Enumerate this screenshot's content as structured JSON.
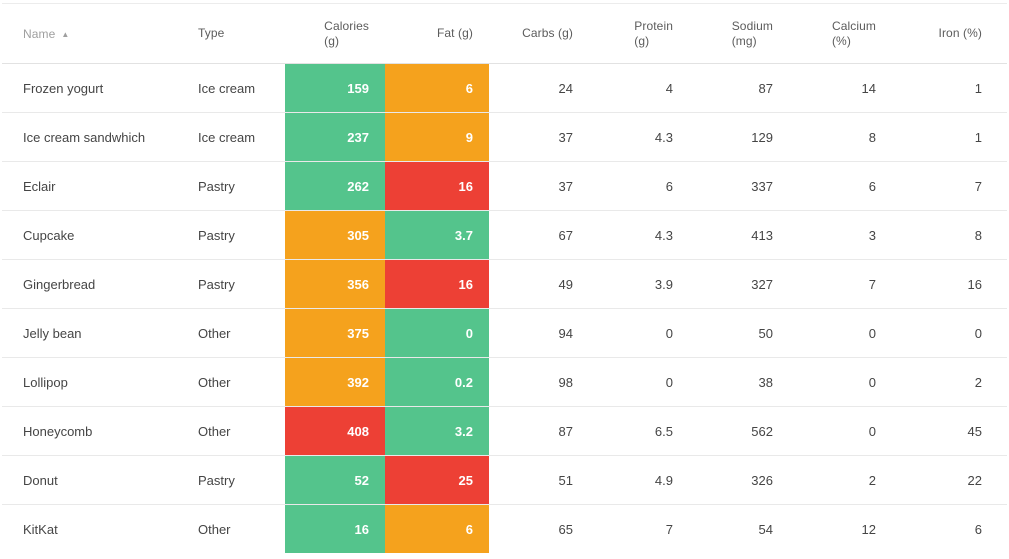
{
  "table": {
    "sort": {
      "column": "Name",
      "direction": "ascending",
      "icon": "▲"
    },
    "colors": {
      "green": "#54C48C",
      "orange": "#F5A21D",
      "red": "#ED4035",
      "divider": "#e9e9e9",
      "header_text": "#5c5c5c",
      "sorted_header_text": "#9f9f9f",
      "body_text": "#454545",
      "background": "#ffffff"
    },
    "columns": [
      {
        "key": "name",
        "label": "Name",
        "lines": [
          "Name"
        ],
        "align": "left",
        "sorted": true
      },
      {
        "key": "type",
        "label": "Type",
        "lines": [
          "Type"
        ],
        "align": "left"
      },
      {
        "key": "calories",
        "label": "Calories (g)",
        "lines": [
          "Calories",
          "(g)"
        ],
        "align": "right"
      },
      {
        "key": "fat",
        "label": "Fat (g)",
        "lines": [
          "Fat (g)"
        ],
        "align": "right"
      },
      {
        "key": "carbs",
        "label": "Carbs (g)",
        "lines": [
          "Carbs (g)"
        ],
        "align": "right"
      },
      {
        "key": "protein",
        "label": "Protein (g)",
        "lines": [
          "Protein",
          "(g)"
        ],
        "align": "right"
      },
      {
        "key": "sodium",
        "label": "Sodium (mg)",
        "lines": [
          "Sodium",
          "(mg)"
        ],
        "align": "right"
      },
      {
        "key": "calcium",
        "label": "Calcium (%)",
        "lines": [
          "Calcium",
          "(%)"
        ],
        "align": "right"
      },
      {
        "key": "iron",
        "label": "Iron (%)",
        "lines": [
          "Iron (%)"
        ],
        "align": "right"
      }
    ],
    "rows": [
      {
        "cells": {
          "name": "Frozen yogurt",
          "type": "Ice cream",
          "calories": {
            "value": "159",
            "color": "green"
          },
          "fat": {
            "value": "6",
            "color": "orange"
          },
          "carbs": "24",
          "protein": "4",
          "sodium": "87",
          "calcium": "14",
          "iron": "1"
        }
      },
      {
        "cells": {
          "name": "Ice cream sandwhich",
          "type": "Ice cream",
          "calories": {
            "value": "237",
            "color": "green"
          },
          "fat": {
            "value": "9",
            "color": "orange"
          },
          "carbs": "37",
          "protein": "4.3",
          "sodium": "129",
          "calcium": "8",
          "iron": "1"
        }
      },
      {
        "cells": {
          "name": "Eclair",
          "type": "Pastry",
          "calories": {
            "value": "262",
            "color": "green"
          },
          "fat": {
            "value": "16",
            "color": "red"
          },
          "carbs": "37",
          "protein": "6",
          "sodium": "337",
          "calcium": "6",
          "iron": "7"
        }
      },
      {
        "cells": {
          "name": "Cupcake",
          "type": "Pastry",
          "calories": {
            "value": "305",
            "color": "orange"
          },
          "fat": {
            "value": "3.7",
            "color": "green"
          },
          "carbs": "67",
          "protein": "4.3",
          "sodium": "413",
          "calcium": "3",
          "iron": "8"
        }
      },
      {
        "cells": {
          "name": "Gingerbread",
          "type": "Pastry",
          "calories": {
            "value": "356",
            "color": "orange"
          },
          "fat": {
            "value": "16",
            "color": "red"
          },
          "carbs": "49",
          "protein": "3.9",
          "sodium": "327",
          "calcium": "7",
          "iron": "16"
        }
      },
      {
        "cells": {
          "name": "Jelly bean",
          "type": "Other",
          "calories": {
            "value": "375",
            "color": "orange"
          },
          "fat": {
            "value": "0",
            "color": "green"
          },
          "carbs": "94",
          "protein": "0",
          "sodium": "50",
          "calcium": "0",
          "iron": "0"
        }
      },
      {
        "cells": {
          "name": "Lollipop",
          "type": "Other",
          "calories": {
            "value": "392",
            "color": "orange"
          },
          "fat": {
            "value": "0.2",
            "color": "green"
          },
          "carbs": "98",
          "protein": "0",
          "sodium": "38",
          "calcium": "0",
          "iron": "2"
        }
      },
      {
        "cells": {
          "name": "Honeycomb",
          "type": "Other",
          "calories": {
            "value": "408",
            "color": "red"
          },
          "fat": {
            "value": "3.2",
            "color": "green"
          },
          "carbs": "87",
          "protein": "6.5",
          "sodium": "562",
          "calcium": "0",
          "iron": "45"
        }
      },
      {
        "cells": {
          "name": "Donut",
          "type": "Pastry",
          "calories": {
            "value": "52",
            "color": "green"
          },
          "fat": {
            "value": "25",
            "color": "red"
          },
          "carbs": "51",
          "protein": "4.9",
          "sodium": "326",
          "calcium": "2",
          "iron": "22"
        }
      },
      {
        "cells": {
          "name": "KitKat",
          "type": "Other",
          "calories": {
            "value": "16",
            "color": "green"
          },
          "fat": {
            "value": "6",
            "color": "orange"
          },
          "carbs": "65",
          "protein": "7",
          "sodium": "54",
          "calcium": "12",
          "iron": "6"
        }
      }
    ]
  }
}
